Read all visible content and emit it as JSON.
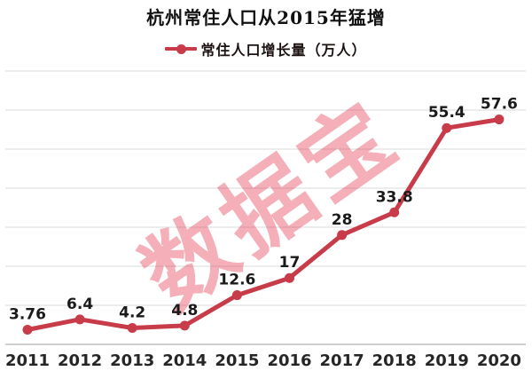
{
  "title": "杭州常住人口从2015年猛增",
  "legend": {
    "label": "常住人口增长量（万人）"
  },
  "watermark": "数据宝",
  "colors": {
    "line": "#c83c4a",
    "grid": "#d9d9d9",
    "axis": "#bfbfbf",
    "data_label": "#1a1a1a",
    "watermark": "rgba(228,55,80,0.4)"
  },
  "chart_data": {
    "type": "line",
    "title": "杭州常住人口从2015年猛增",
    "categories": [
      "2011",
      "2012",
      "2013",
      "2014",
      "2015",
      "2016",
      "2017",
      "2018",
      "2019",
      "2020"
    ],
    "series": [
      {
        "name": "常住人口增长量（万人）",
        "values": [
          3.76,
          6.4,
          4.2,
          4.8,
          12.6,
          17,
          28,
          33.8,
          55.4,
          57.6
        ]
      }
    ],
    "xlabel": "",
    "ylabel": "",
    "ylim": [
      0,
      70
    ],
    "grid_step": 10,
    "grid": "horizontal",
    "y_axis_labels_visible": false,
    "data_labels": true,
    "legend_position": "top",
    "marker": "circle"
  }
}
